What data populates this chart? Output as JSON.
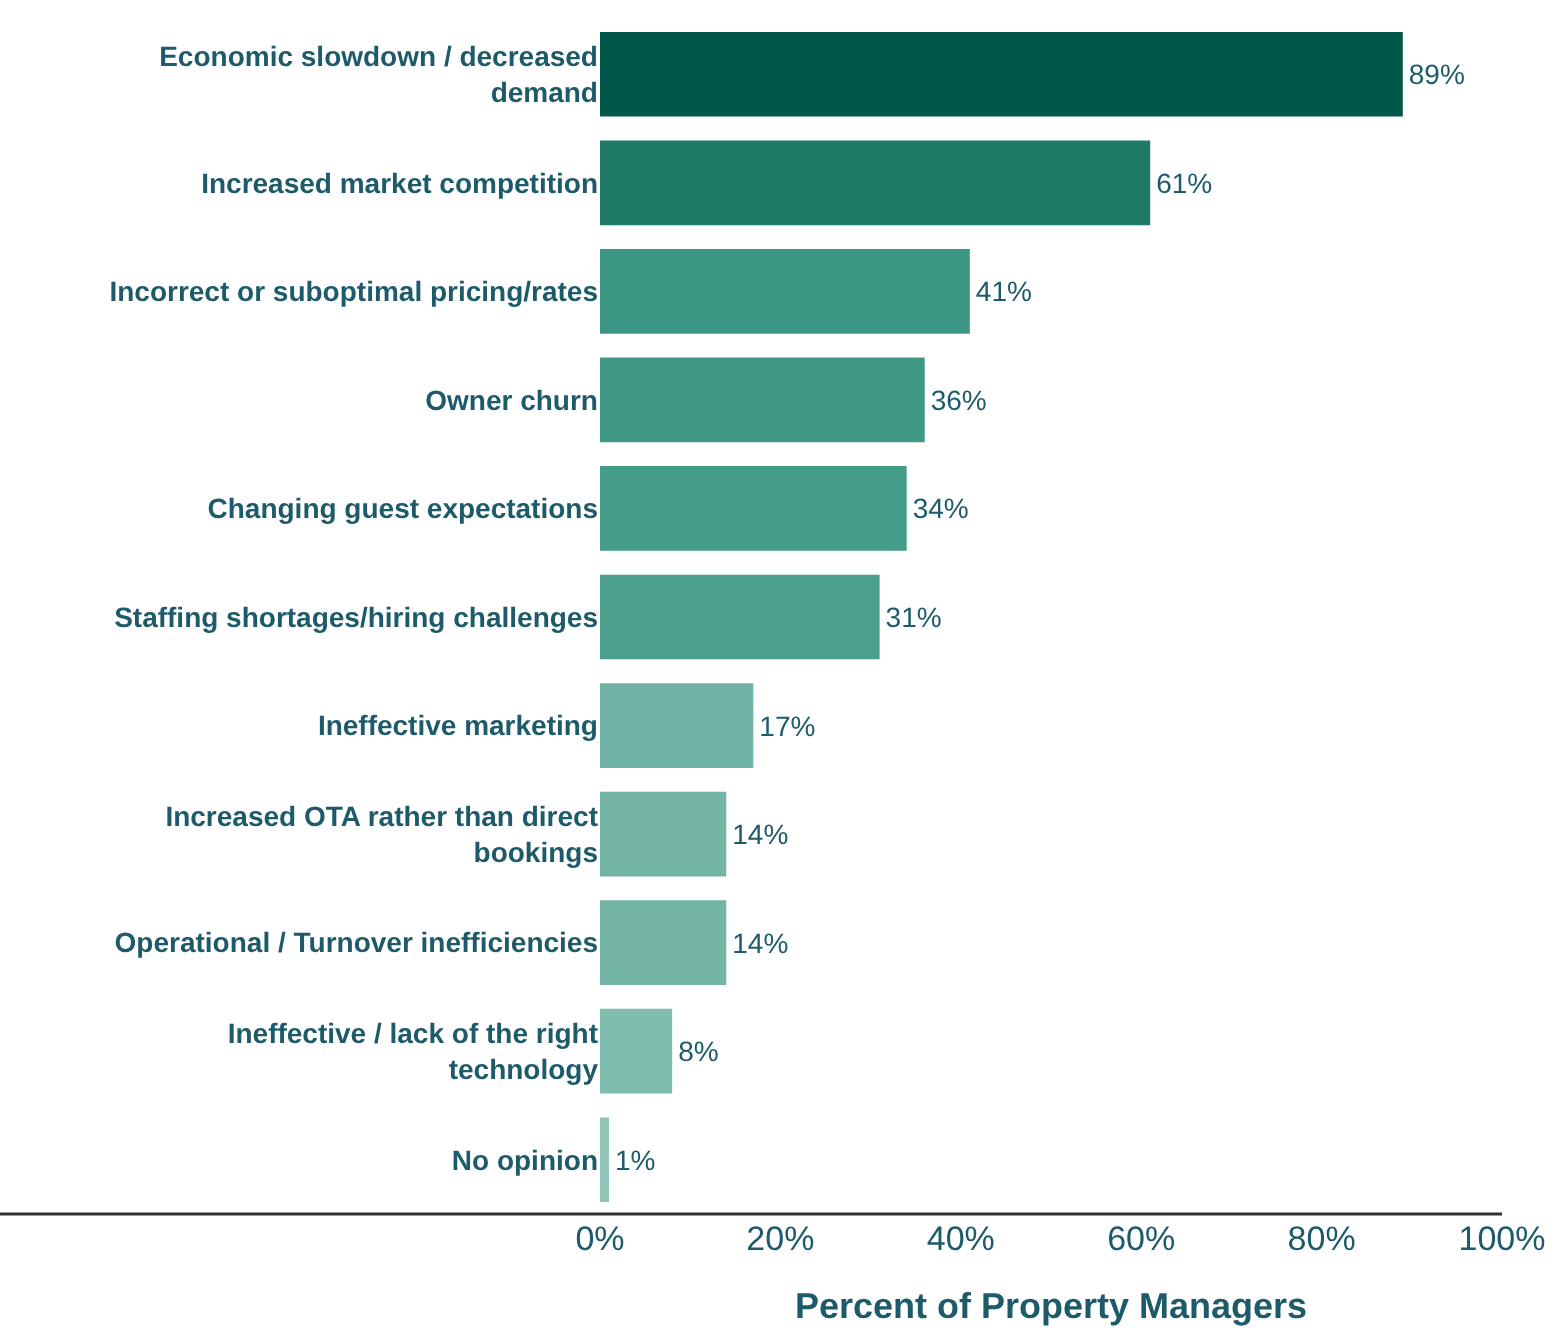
{
  "chart_data": {
    "type": "bar",
    "orientation": "horizontal",
    "xlabel": "Percent of Property Managers",
    "categories": [
      "Economic slowdown / decreased\ndemand",
      "Increased market competition",
      "Incorrect or suboptimal pricing/rates",
      "Owner churn",
      "Changing guest expectations",
      "Staffing shortages/hiring challenges",
      "Ineffective marketing",
      "Increased OTA rather than direct\nbookings",
      "Operational / Turnover inefficiencies",
      "Ineffective / lack of the right\ntechnology",
      "No opinion"
    ],
    "values": [
      89,
      61,
      41,
      36,
      34,
      31,
      17,
      14,
      14,
      8,
      1
    ],
    "value_labels": [
      "89%",
      "61%",
      "41%",
      "36%",
      "34%",
      "31%",
      "17%",
      "14%",
      "14%",
      "8%",
      "1%"
    ],
    "colors": [
      "#00574a",
      "#1f7a68",
      "#3b9683",
      "#409985",
      "#459c88",
      "#4c9f8c",
      "#6eb3a3",
      "#72b5a5",
      "#72b5a5",
      "#7fbdae",
      "#90c6b9"
    ],
    "xlim": [
      0,
      100
    ],
    "xticks": [
      {
        "value": 0,
        "label": "0%"
      },
      {
        "value": 20,
        "label": "20%"
      },
      {
        "value": 40,
        "label": "40%"
      },
      {
        "value": 60,
        "label": "60%"
      },
      {
        "value": 80,
        "label": "80%"
      },
      {
        "value": 100,
        "label": "100%"
      }
    ],
    "legend": false
  }
}
